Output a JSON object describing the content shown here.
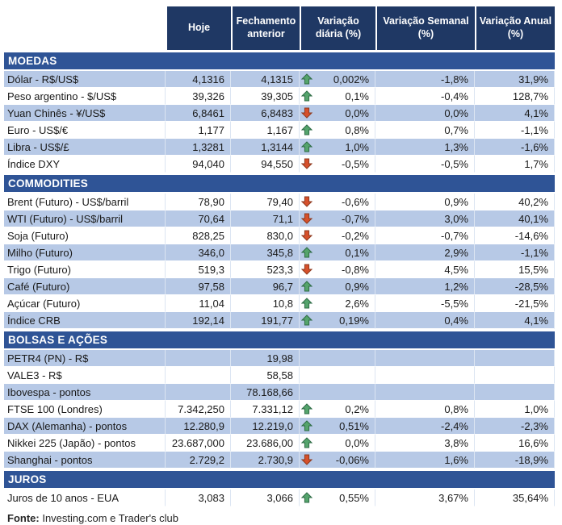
{
  "chart_data": {
    "type": "table",
    "columns": [
      "Hoje",
      "Fechamento anterior",
      "Variação diária (%)",
      "Variação Semanal (%)",
      "Variação Anual (%)"
    ],
    "sections": [
      {
        "title": "MOEDAS",
        "first_row_shaded": true,
        "rows": [
          {
            "label": "Dólar - R$/US$",
            "hoje": "4,1316",
            "fechamento": "4,1315",
            "arrow": "up",
            "diaria": "0,002%",
            "semanal": "-1,8%",
            "anual": "31,9%"
          },
          {
            "label": "Peso argentino - $/US$",
            "hoje": "39,326",
            "fechamento": "39,305",
            "arrow": "up",
            "diaria": "0,1%",
            "semanal": "-0,4%",
            "anual": "128,7%"
          },
          {
            "label": "Yuan Chinês - ¥/US$",
            "hoje": "6,8461",
            "fechamento": "6,8483",
            "arrow": "down",
            "diaria": "0,0%",
            "semanal": "0,0%",
            "anual": "4,1%"
          },
          {
            "label": "Euro - US$/€",
            "hoje": "1,177",
            "fechamento": "1,167",
            "arrow": "up",
            "diaria": "0,8%",
            "semanal": "0,7%",
            "anual": "-1,1%"
          },
          {
            "label": "Libra - US$/£",
            "hoje": "1,3281",
            "fechamento": "1,3144",
            "arrow": "up",
            "diaria": "1,0%",
            "semanal": "1,3%",
            "anual": "-1,6%"
          },
          {
            "label": "Índice DXY",
            "hoje": "94,040",
            "fechamento": "94,550",
            "arrow": "down",
            "diaria": "-0,5%",
            "semanal": "-0,5%",
            "anual": "1,7%"
          }
        ]
      },
      {
        "title": "COMMODITIES",
        "first_row_shaded": false,
        "rows": [
          {
            "label": "Brent (Futuro) - US$/barril",
            "hoje": "78,90",
            "fechamento": "79,40",
            "arrow": "down",
            "diaria": "-0,6%",
            "semanal": "0,9%",
            "anual": "40,2%"
          },
          {
            "label": "WTI (Futuro) - US$/barril",
            "hoje": "70,64",
            "fechamento": "71,1",
            "arrow": "down",
            "diaria": "-0,7%",
            "semanal": "3,0%",
            "anual": "40,1%"
          },
          {
            "label": "Soja (Futuro)",
            "hoje": "828,25",
            "fechamento": "830,0",
            "arrow": "down",
            "diaria": "-0,2%",
            "semanal": "-0,7%",
            "anual": "-14,6%"
          },
          {
            "label": "Milho (Futuro)",
            "hoje": "346,0",
            "fechamento": "345,8",
            "arrow": "up",
            "diaria": "0,1%",
            "semanal": "2,9%",
            "anual": "-1,1%"
          },
          {
            "label": "Trigo (Futuro)",
            "hoje": "519,3",
            "fechamento": "523,3",
            "arrow": "down",
            "diaria": "-0,8%",
            "semanal": "4,5%",
            "anual": "15,5%"
          },
          {
            "label": "Café (Futuro)",
            "hoje": "97,58",
            "fechamento": "96,7",
            "arrow": "up",
            "diaria": "0,9%",
            "semanal": "1,2%",
            "anual": "-28,5%"
          },
          {
            "label": "Açúcar (Futuro)",
            "hoje": "11,04",
            "fechamento": "10,8",
            "arrow": "up",
            "diaria": "2,6%",
            "semanal": "-5,5%",
            "anual": "-21,5%"
          },
          {
            "label": "Índice CRB",
            "hoje": "192,14",
            "fechamento": "191,77",
            "arrow": "up",
            "diaria": "0,19%",
            "semanal": "0,4%",
            "anual": "4,1%"
          }
        ]
      },
      {
        "title": "BOLSAS E AÇÕES",
        "first_row_shaded": true,
        "rows": [
          {
            "label": "PETR4 (PN) - R$",
            "hoje": "",
            "fechamento": "19,98",
            "arrow": null,
            "diaria": "",
            "semanal": "",
            "anual": ""
          },
          {
            "label": "VALE3 - R$",
            "hoje": "",
            "fechamento": "58,58",
            "arrow": null,
            "diaria": "",
            "semanal": "",
            "anual": ""
          },
          {
            "label": "Ibovespa - pontos",
            "hoje": "",
            "fechamento": "78.168,66",
            "arrow": null,
            "diaria": "",
            "semanal": "",
            "anual": ""
          },
          {
            "label": "FTSE 100 (Londres)",
            "hoje": "7.342,250",
            "fechamento": "7.331,12",
            "arrow": "up",
            "diaria": "0,2%",
            "semanal": "0,8%",
            "anual": "1,0%"
          },
          {
            "label": "DAX (Alemanha) - pontos",
            "hoje": "12.280,9",
            "fechamento": "12.219,0",
            "arrow": "up",
            "diaria": "0,51%",
            "semanal": "-2,4%",
            "anual": "-2,3%"
          },
          {
            "label": "Nikkei 225 (Japão) - pontos",
            "hoje": "23.687,000",
            "fechamento": "23.686,00",
            "arrow": "up",
            "diaria": "0,0%",
            "semanal": "3,8%",
            "anual": "16,6%"
          },
          {
            "label": "Shanghai - pontos",
            "hoje": "2.729,2",
            "fechamento": "2.730,9",
            "arrow": "down",
            "diaria": "-0,06%",
            "semanal": "1,6%",
            "anual": "-18,9%"
          }
        ]
      },
      {
        "title": "JUROS",
        "first_row_shaded": false,
        "rows": [
          {
            "label": "Juros de 10 anos - EUA",
            "hoje": "3,083",
            "fechamento": "3,066",
            "arrow": "up",
            "diaria": "0,55%",
            "semanal": "3,67%",
            "anual": "35,64%"
          }
        ]
      }
    ],
    "source_note": {
      "prefix": "Fonte:",
      "text": "Investing.com e Trader's club"
    }
  },
  "colors": {
    "header_bg": "#1F3864",
    "section_bg": "#2F5496",
    "row_shaded": "#B7C9E6",
    "row_plain": "#FFFFFF",
    "arrow_up_fill": "#55A46C",
    "arrow_up_stroke": "#2E6B45",
    "arrow_down_fill": "#D6502B",
    "arrow_down_stroke": "#8E3A1F"
  }
}
